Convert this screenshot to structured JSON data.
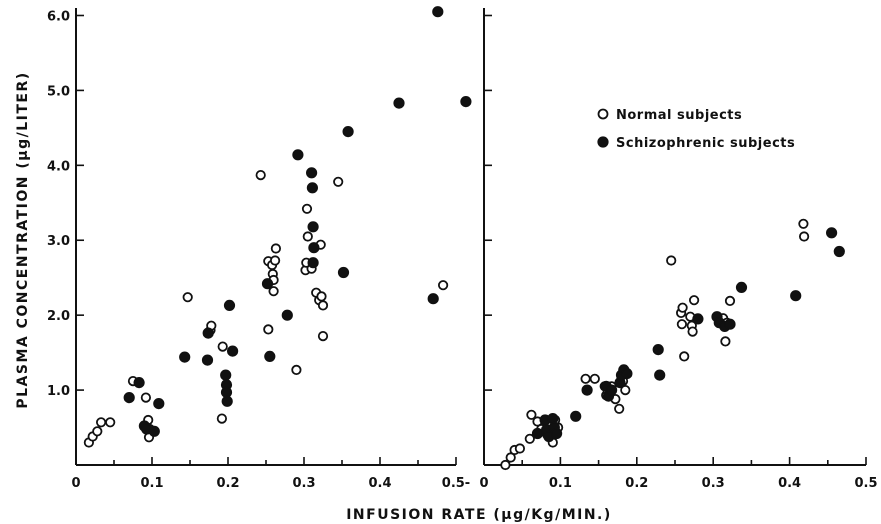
{
  "chart_data": {
    "type": "scatter",
    "xlabel": "INFUSION RATE (μg/Kg/MIN.)",
    "ylabel": "PLASMA CONCENTRATION (μg/LITER)",
    "yticks": [
      "1.0",
      "2.0",
      "3.0",
      "4.0",
      "5.0",
      "6.0"
    ],
    "ylim": [
      0,
      6.1
    ],
    "legend_position": "top-right of right panel",
    "series_colors": {
      "normal": "#ffffff",
      "schizophrenic": "#111111"
    },
    "legend": [
      {
        "key": "normal",
        "label": "Normal subjects"
      },
      {
        "key": "schizophrenic",
        "label": "Schizophrenic subjects"
      }
    ],
    "panels": [
      {
        "xticks": [
          "0",
          "0.1",
          "0.2",
          "0.3",
          "0.4",
          "0.5"
        ],
        "xlim": [
          0,
          0.5
        ],
        "series": [
          {
            "key": "normal",
            "points": [
              [
                0.017,
                0.3
              ],
              [
                0.022,
                0.38
              ],
              [
                0.028,
                0.45
              ],
              [
                0.033,
                0.57
              ],
              [
                0.045,
                0.57
              ],
              [
                0.075,
                1.12
              ],
              [
                0.092,
                0.9
              ],
              [
                0.095,
                0.6
              ],
              [
                0.096,
                0.37
              ],
              [
                0.097,
                0.48
              ],
              [
                0.147,
                2.24
              ],
              [
                0.177,
                1.8
              ],
              [
                0.178,
                1.86
              ],
              [
                0.193,
                1.58
              ],
              [
                0.192,
                0.62
              ],
              [
                0.243,
                3.87
              ],
              [
                0.253,
                2.72
              ],
              [
                0.253,
                1.81
              ],
              [
                0.258,
                2.67
              ],
              [
                0.259,
                2.55
              ],
              [
                0.26,
                2.47
              ],
              [
                0.26,
                2.32
              ],
              [
                0.262,
                2.73
              ],
              [
                0.263,
                2.89
              ],
              [
                0.29,
                1.27
              ],
              [
                0.302,
                2.6
              ],
              [
                0.303,
                2.7
              ],
              [
                0.304,
                3.42
              ],
              [
                0.305,
                3.05
              ],
              [
                0.31,
                2.62
              ],
              [
                0.316,
                2.3
              ],
              [
                0.32,
                2.2
              ],
              [
                0.322,
                2.94
              ],
              [
                0.323,
                2.25
              ],
              [
                0.325,
                2.13
              ],
              [
                0.325,
                1.72
              ],
              [
                0.345,
                3.78
              ],
              [
                0.483,
                2.4
              ]
            ]
          },
          {
            "key": "schizophrenic",
            "points": [
              [
                0.07,
                0.9
              ],
              [
                0.083,
                1.1
              ],
              [
                0.09,
                0.52
              ],
              [
                0.093,
                0.48
              ],
              [
                0.103,
                0.45
              ],
              [
                0.109,
                0.82
              ],
              [
                0.143,
                1.44
              ],
              [
                0.173,
                1.4
              ],
              [
                0.174,
                1.76
              ],
              [
                0.197,
                1.2
              ],
              [
                0.198,
                1.07
              ],
              [
                0.198,
                0.97
              ],
              [
                0.199,
                0.85
              ],
              [
                0.202,
                2.13
              ],
              [
                0.206,
                1.52
              ],
              [
                0.252,
                2.42
              ],
              [
                0.255,
                1.45
              ],
              [
                0.278,
                2.0
              ],
              [
                0.292,
                4.14
              ],
              [
                0.31,
                3.9
              ],
              [
                0.311,
                3.7
              ],
              [
                0.312,
                3.18
              ],
              [
                0.313,
                2.9
              ],
              [
                0.312,
                2.7
              ],
              [
                0.352,
                2.57
              ],
              [
                0.358,
                4.45
              ],
              [
                0.425,
                4.83
              ],
              [
                0.47,
                2.22
              ],
              [
                0.476,
                6.05
              ],
              [
                0.513,
                4.85
              ]
            ]
          }
        ]
      },
      {
        "xticks": [
          "0",
          "0.1",
          "0.2",
          "0.3",
          "0.4",
          "0.5"
        ],
        "xlim": [
          0,
          0.5
        ],
        "series": [
          {
            "key": "normal",
            "points": [
              [
                0.028,
                0.0
              ],
              [
                0.035,
                0.1
              ],
              [
                0.04,
                0.2
              ],
              [
                0.047,
                0.22
              ],
              [
                0.06,
                0.35
              ],
              [
                0.062,
                0.67
              ],
              [
                0.07,
                0.58
              ],
              [
                0.075,
                0.48
              ],
              [
                0.083,
                0.4
              ],
              [
                0.085,
                0.55
              ],
              [
                0.09,
                0.3
              ],
              [
                0.092,
                0.45
              ],
              [
                0.093,
                0.6
              ],
              [
                0.097,
                0.5
              ],
              [
                0.133,
                1.15
              ],
              [
                0.145,
                1.15
              ],
              [
                0.158,
                1.05
              ],
              [
                0.16,
                0.93
              ],
              [
                0.162,
                0.98
              ],
              [
                0.167,
                1.05
              ],
              [
                0.172,
                0.88
              ],
              [
                0.177,
                0.75
              ],
              [
                0.182,
                1.12
              ],
              [
                0.185,
                1.0
              ],
              [
                0.245,
                2.73
              ],
              [
                0.258,
                2.03
              ],
              [
                0.259,
                1.88
              ],
              [
                0.26,
                2.1
              ],
              [
                0.262,
                1.45
              ],
              [
                0.27,
                1.98
              ],
              [
                0.272,
                1.86
              ],
              [
                0.273,
                1.78
              ],
              [
                0.275,
                2.2
              ],
              [
                0.31,
                1.95
              ],
              [
                0.313,
                1.96
              ],
              [
                0.316,
                1.65
              ],
              [
                0.318,
                1.9
              ],
              [
                0.322,
                2.19
              ],
              [
                0.418,
                3.22
              ],
              [
                0.419,
                3.05
              ]
            ]
          },
          {
            "key": "schizophrenic",
            "points": [
              [
                0.07,
                0.42
              ],
              [
                0.08,
                0.6
              ],
              [
                0.082,
                0.47
              ],
              [
                0.085,
                0.38
              ],
              [
                0.09,
                0.62
              ],
              [
                0.092,
                0.5
              ],
              [
                0.095,
                0.42
              ],
              [
                0.12,
                0.65
              ],
              [
                0.135,
                1.0
              ],
              [
                0.16,
                1.05
              ],
              [
                0.163,
                0.92
              ],
              [
                0.167,
                1.0
              ],
              [
                0.178,
                1.1
              ],
              [
                0.18,
                1.2
              ],
              [
                0.183,
                1.27
              ],
              [
                0.187,
                1.22
              ],
              [
                0.228,
                1.54
              ],
              [
                0.23,
                1.2
              ],
              [
                0.28,
                1.95
              ],
              [
                0.305,
                1.98
              ],
              [
                0.308,
                1.9
              ],
              [
                0.315,
                1.85
              ],
              [
                0.322,
                1.88
              ],
              [
                0.337,
                2.37
              ],
              [
                0.408,
                2.26
              ],
              [
                0.455,
                3.1
              ],
              [
                0.465,
                2.85
              ]
            ]
          }
        ]
      }
    ]
  }
}
